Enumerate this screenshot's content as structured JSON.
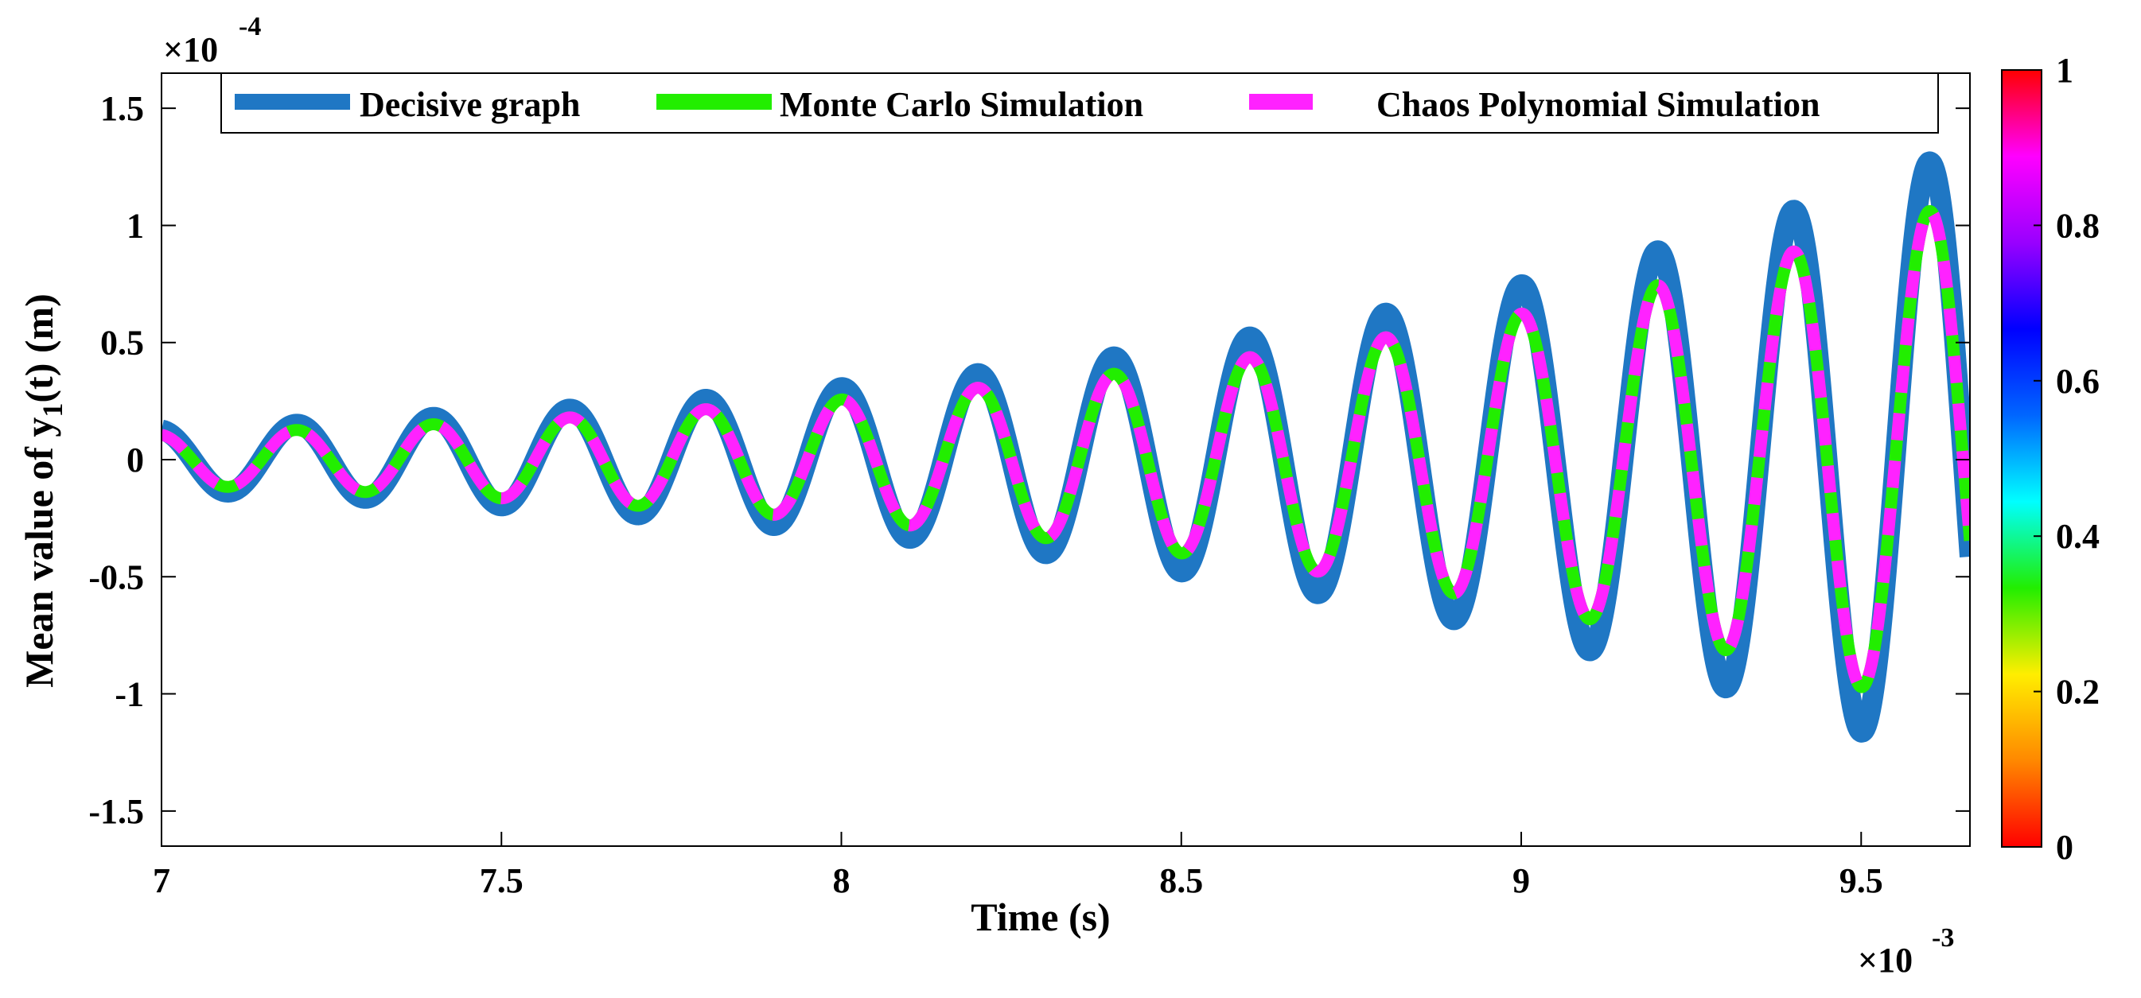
{
  "chart_data": {
    "type": "line",
    "xlabel": "Time (s)",
    "ylabel_main": "Mean value of  y",
    "ylabel_sub": "1",
    "ylabel_tail": "(t) (m)",
    "x_exponent": {
      "base": "×10",
      "power": "-3"
    },
    "y_exponent": {
      "base": "×10",
      "power": "-4"
    },
    "xlim": [
      7.0,
      9.66
    ],
    "ylim": [
      -1.65,
      1.65
    ],
    "x_ticks": [
      7,
      7.5,
      8,
      8.5,
      9,
      9.5
    ],
    "x_tick_labels": [
      "7",
      "7.5",
      "8",
      "8.5",
      "9",
      "9.5"
    ],
    "y_ticks": [
      -1.5,
      -1,
      -0.5,
      0,
      0.5,
      1,
      1.5
    ],
    "y_tick_labels": [
      "-1.5",
      "-1",
      "-0.5",
      "0",
      "0.5",
      "1",
      "1.5"
    ],
    "grid": false,
    "legend_position": "top",
    "series": [
      {
        "name": "Decisive graph",
        "color": "#1f77c4",
        "style": "solid-thick",
        "signal": {
          "frequency": 5,
          "amplitude": 0.127,
          "growth": 0.886,
          "phase": 0.115,
          "t0": 7.0
        }
      },
      {
        "name": "Monte Carlo Simulation",
        "color": "#22ee00",
        "style": "solid",
        "signal": {
          "frequency": 5,
          "amplitude": 0.106,
          "growth": 0.886,
          "phase": 0.085,
          "t0": 7.0
        }
      },
      {
        "name": "Chaos Polynomial Simulation",
        "color": "#ff22ff",
        "style": "dashed",
        "signal": {
          "frequency": 5,
          "amplitude": 0.106,
          "growth": 0.886,
          "phase": 0.085,
          "t0": 7.0
        }
      }
    ],
    "colorbar": {
      "min": 0,
      "max": 1,
      "tick_labels": [
        "0",
        "0.2",
        "0.4",
        "0.6",
        "0.8",
        "1"
      ],
      "tick_values": [
        0,
        0.2,
        0.4,
        0.6,
        0.8,
        1
      ],
      "colors": [
        "#ff0000",
        "#ff8800",
        "#ffee00",
        "#22ee00",
        "#00ffff",
        "#0066ff",
        "#0000ff",
        "#9900ff",
        "#ff00ff",
        "#ff0000"
      ]
    }
  }
}
